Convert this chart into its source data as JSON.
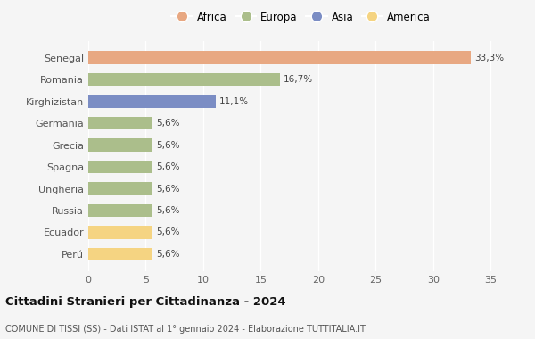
{
  "categories": [
    "Senegal",
    "Romania",
    "Kirghizistan",
    "Germania",
    "Grecia",
    "Spagna",
    "Ungheria",
    "Russia",
    "Ecuador",
    "Perú"
  ],
  "values": [
    33.3,
    16.7,
    11.1,
    5.6,
    5.6,
    5.6,
    5.6,
    5.6,
    5.6,
    5.6
  ],
  "labels": [
    "33,3%",
    "16,7%",
    "11,1%",
    "5,6%",
    "5,6%",
    "5,6%",
    "5,6%",
    "5,6%",
    "5,6%",
    "5,6%"
  ],
  "colors": [
    "#E8A882",
    "#ABBE8B",
    "#7B8DC4",
    "#ABBE8B",
    "#ABBE8B",
    "#ABBE8B",
    "#ABBE8B",
    "#ABBE8B",
    "#F5D482",
    "#F5D482"
  ],
  "legend": [
    {
      "label": "Africa",
      "color": "#E8A882"
    },
    {
      "label": "Europa",
      "color": "#ABBE8B"
    },
    {
      "label": "Asia",
      "color": "#7B8DC4"
    },
    {
      "label": "America",
      "color": "#F5D482"
    }
  ],
  "xlim": [
    0,
    37
  ],
  "xticks": [
    0,
    5,
    10,
    15,
    20,
    25,
    30,
    35
  ],
  "title": "Cittadini Stranieri per Cittadinanza - 2024",
  "subtitle": "COMUNE DI TISSI (SS) - Dati ISTAT al 1° gennaio 2024 - Elaborazione TUTTITALIA.IT",
  "background_color": "#f5f5f5",
  "grid_color": "#ffffff",
  "bar_height": 0.6
}
